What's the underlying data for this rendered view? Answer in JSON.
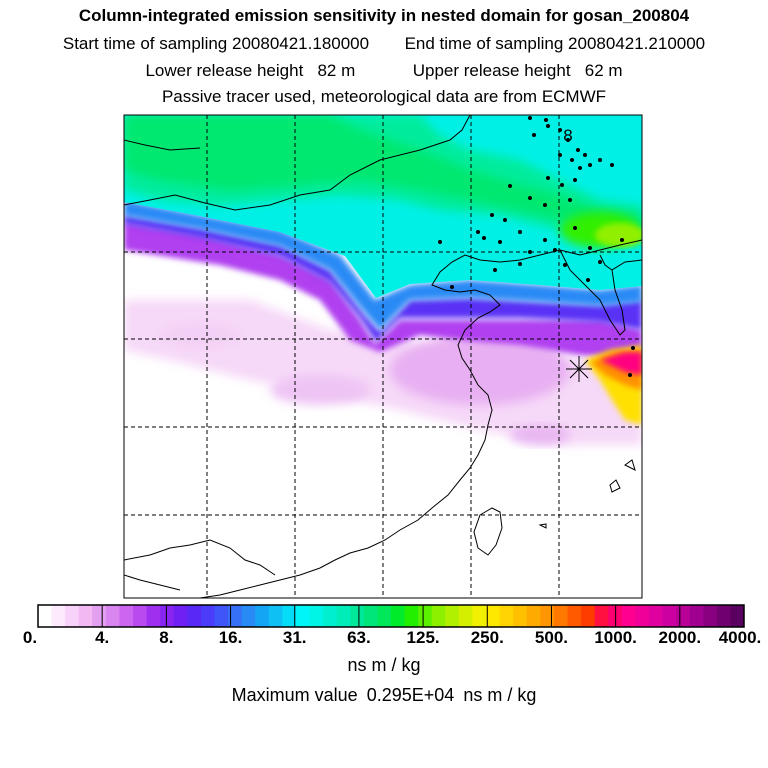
{
  "title": "Column-integrated emission sensitivity in nested domain for gosan_200804",
  "start": {
    "label": "Start time of sampling",
    "value": "20080421.180000"
  },
  "end": {
    "label": "End time of sampling",
    "value": "20080421.210000"
  },
  "lower": {
    "label": "Lower release height",
    "value": "82 m"
  },
  "upper": {
    "label": "Upper release height",
    "value": "62 m"
  },
  "note": "Passive tracer used, meteorological data are from ECMWF",
  "colorbar": {
    "ticks": [
      "0.",
      "4.",
      "8.",
      "16.",
      "31.",
      "63.",
      "125.",
      "250.",
      "500.",
      "1000.",
      "2000.",
      "4000."
    ],
    "colors": [
      "#ffffff",
      "#fdeafd",
      "#f8d2f8",
      "#f1b8f3",
      "#e39ff0",
      "#d985f0",
      "#cc66f0",
      "#b84af0",
      "#a030f0",
      "#8825f0",
      "#6f20f3",
      "#5a28f5",
      "#4a3cf8",
      "#3f55f8",
      "#3570f5",
      "#288af5",
      "#14a5f5",
      "#0fc0f5",
      "#05dcf8",
      "#00f5f8",
      "#00f5e6",
      "#00f0cf",
      "#00ecb8",
      "#00e89a",
      "#00e67a",
      "#00e85a",
      "#00ec2a",
      "#22ef00",
      "#5af000",
      "#8cf000",
      "#b0f000",
      "#d4f000",
      "#f0f000",
      "#ffe800",
      "#ffd400",
      "#ffc000",
      "#ffaa00",
      "#ff9500",
      "#ff7800",
      "#ff5a00",
      "#ff3c00",
      "#ff1040",
      "#ff0070",
      "#ff0090",
      "#f00098",
      "#e000a0",
      "#cc00a0",
      "#b80098",
      "#a00090",
      "#880080",
      "#700070",
      "#5a0060"
    ]
  },
  "units": "ns m / kg",
  "max": {
    "label": "Maximum value",
    "value": "0.295E+04",
    "units": "ns m / kg"
  },
  "marker": {
    "label": "8"
  }
}
